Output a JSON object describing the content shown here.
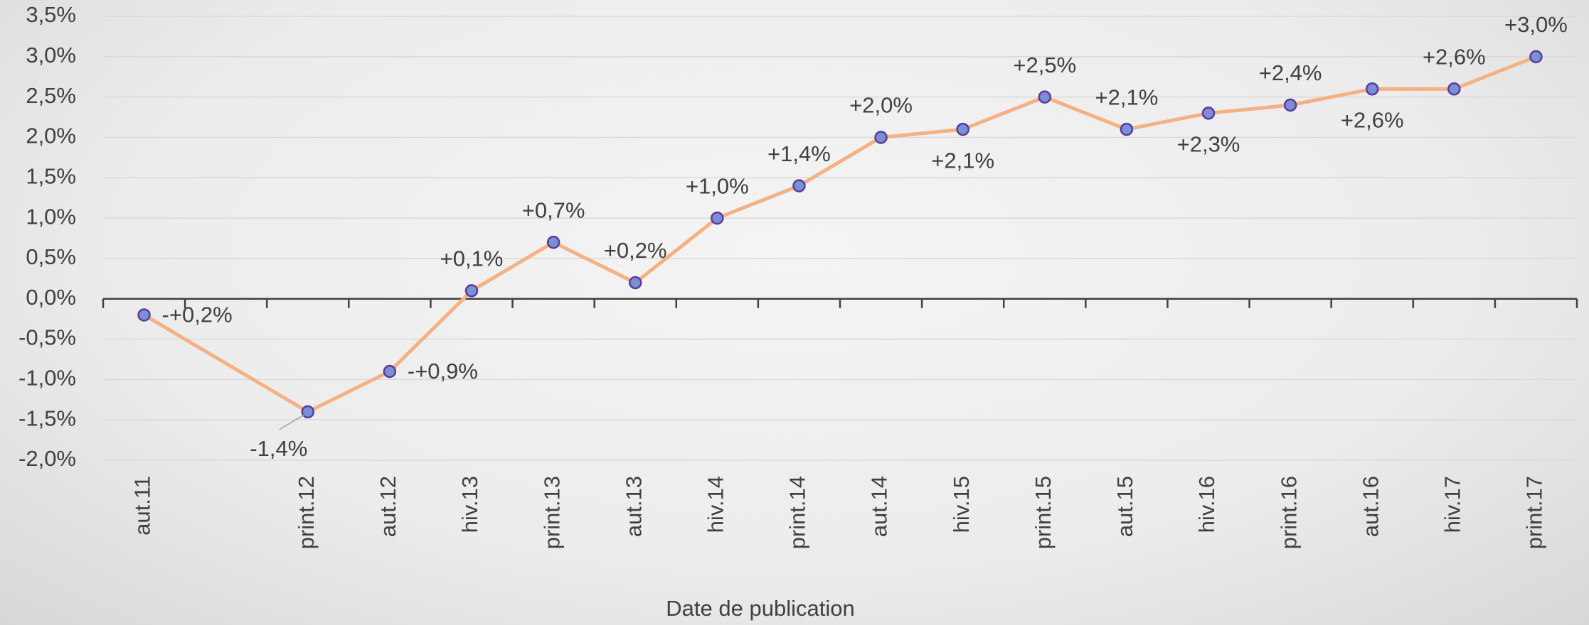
{
  "chart_data": {
    "type": "line",
    "x_label": "Date de publication",
    "categories": [
      "aut.11",
      null,
      "print.12",
      "aut.12",
      "hiv.13",
      "print.13",
      "aut.13",
      "hiv.14",
      "print.14",
      "aut.14",
      "hiv.15",
      "print.15",
      "aut.15",
      "hiv.16",
      "print.16",
      "aut.16",
      "hiv.17",
      "print.17"
    ],
    "series": [
      {
        "color": "#f4b183",
        "marker_color": "#7b8fd6",
        "values": [
          -0.2,
          null,
          -1.4,
          -0.9,
          0.1,
          0.7,
          0.2,
          1.0,
          1.4,
          2.0,
          2.1,
          2.5,
          2.1,
          2.3,
          2.4,
          2.6,
          2.6,
          3.0
        ],
        "value_labels": [
          "-+0,2%",
          null,
          "-1,4%",
          "-+0,9%",
          "+0,1%",
          "+0,7%",
          "+0,2%",
          "+1,0%",
          "+1,4%",
          "+2,0%",
          "+2,1%",
          "+2,5%",
          "+2,1%",
          "+2,3%",
          "+2,4%",
          "+2,6%",
          "+2,6%",
          "+3,0%"
        ]
      }
    ],
    "connect_gaps": true,
    "ylim": [
      -2.0,
      3.5
    ],
    "yticks": [
      {
        "value": -2.0,
        "label": "-2,0%"
      },
      {
        "value": -1.5,
        "label": "-1,5%"
      },
      {
        "value": -1.0,
        "label": "-1,0%"
      },
      {
        "value": -0.5,
        "label": "-0,5%"
      },
      {
        "value": 0,
        "label": "0,0%"
      },
      {
        "value": 0.5,
        "label": "0,5%"
      },
      {
        "value": 1.0,
        "label": "1,0%"
      },
      {
        "value": 1.5,
        "label": "1,5%"
      },
      {
        "value": 2.0,
        "label": "2,0%"
      },
      {
        "value": 2.5,
        "label": "2,5%"
      },
      {
        "value": 3.0,
        "label": "3,0%"
      },
      {
        "value": 3.5,
        "label": "3,5%"
      }
    ],
    "grid": true
  }
}
